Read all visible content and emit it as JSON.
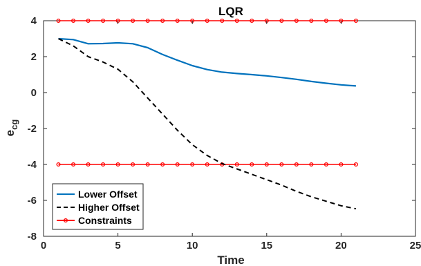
{
  "chart_data": {
    "type": "line",
    "title": "LQR",
    "xlabel": "Time",
    "ylabel_main": "e",
    "ylabel_sub": "cg",
    "xlim": [
      0,
      25
    ],
    "ylim": [
      -8,
      4
    ],
    "xticks": [
      0,
      5,
      10,
      15,
      20,
      25
    ],
    "yticks": [
      -8,
      -6,
      -4,
      -2,
      0,
      2,
      4
    ],
    "grid": false,
    "legend_position": "bottom-left",
    "x": [
      1,
      2,
      3,
      4,
      5,
      6,
      7,
      8,
      9,
      10,
      11,
      12,
      13,
      14,
      15,
      16,
      17,
      18,
      19,
      20,
      21
    ],
    "series": [
      {
        "name": "Lower Offset",
        "color": "#0072BD",
        "style": "solid",
        "values": [
          3.0,
          2.95,
          2.72,
          2.73,
          2.77,
          2.72,
          2.5,
          2.12,
          1.8,
          1.5,
          1.28,
          1.14,
          1.06,
          1.0,
          0.93,
          0.84,
          0.74,
          0.62,
          0.52,
          0.43,
          0.37
        ]
      },
      {
        "name": "Higher Offset",
        "color": "#000000",
        "style": "dashed",
        "values": [
          3.0,
          2.6,
          2.0,
          1.7,
          1.3,
          0.6,
          -0.3,
          -1.2,
          -2.1,
          -2.9,
          -3.5,
          -3.95,
          -4.25,
          -4.55,
          -4.85,
          -5.15,
          -5.5,
          -5.8,
          -6.05,
          -6.3,
          -6.47
        ]
      },
      {
        "name": "Constraints",
        "color": "#FF0000",
        "style": "solid-marker",
        "values_upper": [
          4,
          4,
          4,
          4,
          4,
          4,
          4,
          4,
          4,
          4,
          4,
          4,
          4,
          4,
          4,
          4,
          4,
          4,
          4,
          4,
          4
        ],
        "values_lower": [
          -4,
          -4,
          -4,
          -4,
          -4,
          -4,
          -4,
          -4,
          -4,
          -4,
          -4,
          -4,
          -4,
          -4,
          -4,
          -4,
          -4,
          -4,
          -4,
          -4,
          -4
        ]
      }
    ]
  }
}
